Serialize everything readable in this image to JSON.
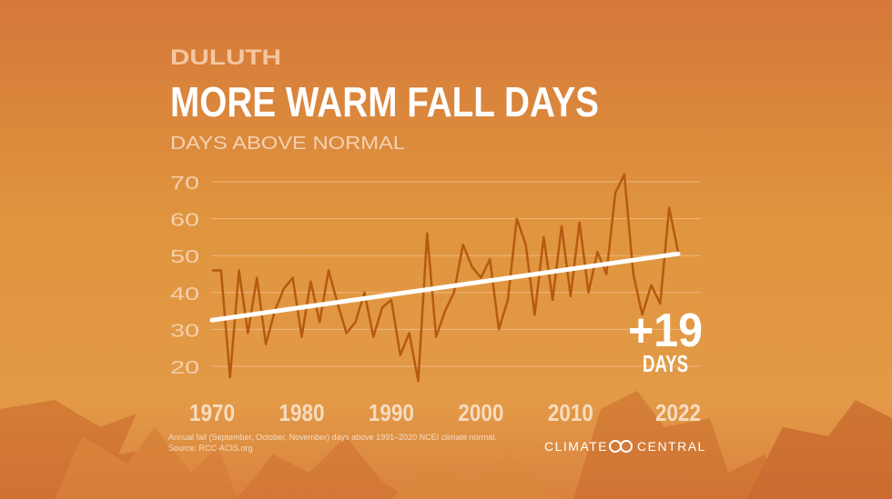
{
  "chart_data": {
    "type": "line",
    "kicker": "DULUTH",
    "title": "MORE WARM FALL DAYS",
    "ylabel": "DAYS ABOVE NORMAL",
    "x": [
      1970,
      1971,
      1972,
      1973,
      1974,
      1975,
      1976,
      1977,
      1978,
      1979,
      1980,
      1981,
      1982,
      1983,
      1984,
      1985,
      1986,
      1987,
      1988,
      1989,
      1990,
      1991,
      1992,
      1993,
      1994,
      1995,
      1996,
      1997,
      1998,
      1999,
      2000,
      2001,
      2002,
      2003,
      2004,
      2005,
      2006,
      2007,
      2008,
      2009,
      2010,
      2011,
      2012,
      2013,
      2014,
      2015,
      2016,
      2017,
      2018,
      2019,
      2020,
      2021,
      2022
    ],
    "series": [
      {
        "color": "#b65a12",
        "values": [
          46,
          46,
          17,
          46,
          29,
          44,
          26,
          35,
          41,
          44,
          28,
          43,
          32,
          46,
          37,
          29,
          32,
          40,
          28,
          36,
          38,
          23,
          29,
          16,
          56,
          28,
          35,
          40,
          53,
          47,
          44,
          49,
          30,
          38,
          60,
          53,
          34,
          55,
          38,
          58,
          39,
          59,
          40,
          51,
          45,
          67,
          72,
          45,
          34,
          42,
          37,
          63,
          51
        ]
      }
    ],
    "trend": {
      "color": "#ffffff",
      "x": [
        1970,
        2022
      ],
      "values": [
        32.5,
        50.5
      ]
    },
    "xlim": [
      1970,
      2022
    ],
    "xticks": [
      1970,
      1980,
      1990,
      2000,
      2010,
      2022
    ],
    "ylim": [
      12,
      74
    ],
    "yticks": [
      20,
      30,
      40,
      50,
      60,
      70
    ],
    "grid": true,
    "annotation": {
      "value": "+19",
      "unit": "DAYS"
    },
    "note": "Annual fall (September, October, November) days above 1991–2020 NCEI climate normal.",
    "source": "Source: RCC-ACIS.org",
    "logo": [
      "CLIMATE",
      "CENTRAL"
    ]
  }
}
